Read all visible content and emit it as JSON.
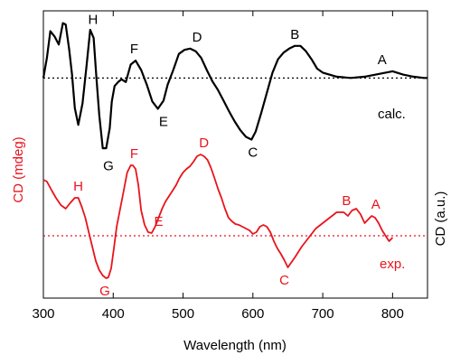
{
  "chart_data": {
    "type": "line",
    "xlabel": "Wavelength (nm)",
    "ylabel_left": "CD (mdeg)",
    "ylabel_right": "CD (a.u.)",
    "xlim": [
      300,
      850
    ],
    "x_ticks": [
      300,
      400,
      500,
      600,
      700,
      800
    ],
    "grid": false,
    "colors": {
      "calc": "#000000",
      "exp": "#e8141c"
    },
    "series": [
      {
        "name": "calc.",
        "color": "#000000",
        "baseline": 0,
        "ylim": [
          -140,
          95
        ],
        "x": [
          300,
          305,
          310,
          316,
          322,
          328,
          332,
          337,
          341,
          345,
          350,
          356,
          362,
          367,
          372,
          376,
          380,
          385,
          390,
          395,
          398,
          402,
          407,
          412,
          418,
          425,
          432,
          440,
          448,
          456,
          464,
          472,
          478,
          486,
          494,
          502,
          510,
          518,
          526,
          534,
          542,
          550,
          558,
          566,
          574,
          582,
          590,
          598,
          604,
          612,
          620,
          628,
          636,
          644,
          652,
          660,
          668,
          676,
          684,
          692,
          700,
          720,
          740,
          760,
          780,
          800,
          815,
          830,
          845,
          850
        ],
        "y": [
          0,
          30,
          70,
          62,
          50,
          82,
          80,
          42,
          5,
          -45,
          -70,
          -38,
          20,
          72,
          60,
          0,
          -55,
          -105,
          -105,
          -75,
          -35,
          -12,
          -6,
          -2,
          -6,
          20,
          26,
          12,
          -10,
          -35,
          -46,
          -34,
          -10,
          12,
          36,
          42,
          44,
          40,
          30,
          12,
          -5,
          -18,
          -34,
          -50,
          -65,
          -78,
          -88,
          -92,
          -80,
          -52,
          -22,
          8,
          28,
          38,
          44,
          48,
          48,
          40,
          28,
          14,
          8,
          2,
          0,
          2,
          6,
          10,
          5,
          2,
          0,
          0
        ]
      },
      {
        "name": "exp.",
        "color": "#e8141c",
        "baseline": 0,
        "ylim": [
          -45,
          95
        ],
        "x": [
          300,
          305,
          312,
          318,
          325,
          332,
          338,
          345,
          350,
          355,
          360,
          365,
          370,
          375,
          380,
          385,
          390,
          393,
          397,
          401,
          405,
          410,
          415,
          420,
          425,
          428,
          432,
          436,
          440,
          445,
          450,
          455,
          460,
          465,
          470,
          475,
          480,
          485,
          490,
          495,
          500,
          505,
          510,
          515,
          520,
          525,
          530,
          535,
          540,
          545,
          550,
          555,
          560,
          565,
          570,
          575,
          580,
          585,
          590,
          595,
          600,
          605,
          610,
          615,
          620,
          625,
          630,
          635,
          640,
          645,
          650,
          660,
          670,
          680,
          690,
          700,
          710,
          720,
          730,
          736,
          742,
          748,
          754,
          760,
          765,
          770,
          775,
          780,
          785,
          790,
          795,
          800
        ],
        "y": [
          62,
          60,
          50,
          42,
          34,
          30,
          36,
          42,
          42,
          32,
          20,
          4,
          -12,
          -28,
          -38,
          -44,
          -47,
          -46,
          -36,
          -14,
          10,
          30,
          50,
          70,
          78,
          78,
          74,
          56,
          28,
          12,
          4,
          3,
          10,
          20,
          30,
          38,
          44,
          50,
          56,
          64,
          70,
          74,
          77,
          82,
          88,
          90,
          88,
          84,
          75,
          64,
          52,
          42,
          30,
          20,
          16,
          13,
          12,
          10,
          8,
          6,
          2,
          4,
          10,
          12,
          10,
          4,
          -6,
          -14,
          -20,
          -27,
          -35,
          -24,
          -12,
          -2,
          8,
          14,
          20,
          26,
          26,
          22,
          28,
          30,
          24,
          14,
          18,
          22,
          20,
          14,
          6,
          0,
          -6,
          -2
        ]
      }
    ],
    "calc_labels": [
      {
        "text": "H",
        "x": 371,
        "y": 70
      },
      {
        "text": "G",
        "x": 393,
        "y": -112
      },
      {
        "text": "F",
        "x": 430,
        "y": 26
      },
      {
        "text": "E",
        "x": 472,
        "y": -46
      },
      {
        "text": "D",
        "x": 520,
        "y": 44
      },
      {
        "text": "C",
        "x": 600,
        "y": -92
      },
      {
        "text": "B",
        "x": 660,
        "y": 48
      },
      {
        "text": "A",
        "x": 785,
        "y": 10
      }
    ],
    "exp_labels": [
      {
        "text": "H",
        "x": 350,
        "y": 42
      },
      {
        "text": "G",
        "x": 388,
        "y": -47
      },
      {
        "text": "F",
        "x": 430,
        "y": 78
      },
      {
        "text": "E",
        "x": 465,
        "y": 3
      },
      {
        "text": "D",
        "x": 530,
        "y": 90
      },
      {
        "text": "C",
        "x": 645,
        "y": -35
      },
      {
        "text": "B",
        "x": 734,
        "y": 26
      },
      {
        "text": "A",
        "x": 776,
        "y": 22
      }
    ],
    "series_labels": [
      {
        "text": "calc.",
        "series": 0
      },
      {
        "text": "exp.",
        "series": 1
      }
    ]
  }
}
